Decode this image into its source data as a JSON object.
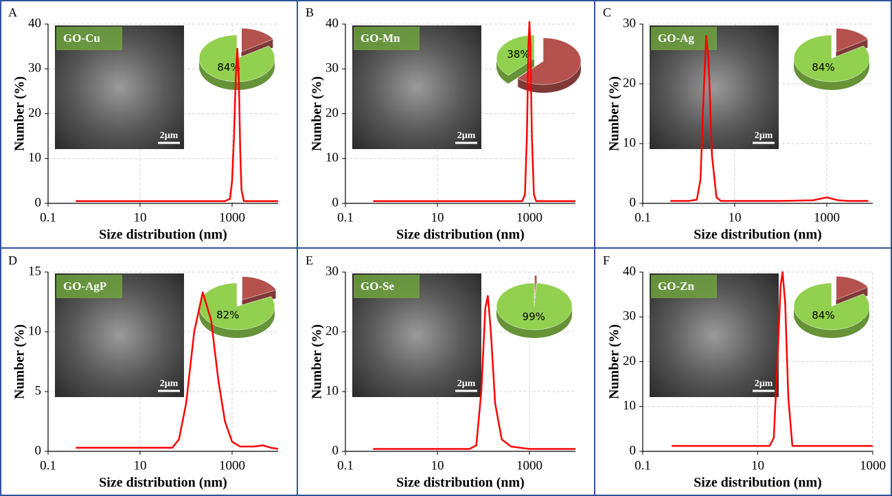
{
  "chart_data": [
    {
      "type": "line",
      "panel": "A",
      "inset_label": "GO-Cu",
      "scale_bar": "2μm",
      "xlabel": "Size distribution (nm)",
      "ylabel": "Number (%)",
      "xscale": "log",
      "grid": true,
      "color": "#ff0000",
      "xlim": [
        0.1,
        10000
      ],
      "xticks": [
        0.1,
        10,
        1000
      ],
      "ylim": [
        0,
        40
      ],
      "yticks": [
        0,
        10,
        20,
        30,
        40
      ],
      "x": [
        0.4,
        100,
        700,
        900,
        1000,
        1100,
        1200,
        1300,
        1400,
        1500,
        1600,
        1800,
        10000
      ],
      "values": [
        0.5,
        0.5,
        0.5,
        1,
        5,
        15,
        28,
        34.5,
        28,
        12,
        3,
        0.5,
        0.5
      ],
      "pie": {
        "values": [
          84,
          16
        ],
        "value_labels": [
          "84%",
          null
        ],
        "colors": [
          "#92d050",
          "#b5524e"
        ]
      }
    },
    {
      "type": "line",
      "panel": "B",
      "inset_label": "GO-Mn",
      "scale_bar": "2μm",
      "xlabel": "Size distribution (nm)",
      "ylabel": "Number (%)",
      "xscale": "log",
      "grid": true,
      "color": "#ff0000",
      "xlim": [
        0.1,
        10000
      ],
      "xticks": [
        0.1,
        10,
        1000
      ],
      "ylim": [
        0,
        40
      ],
      "yticks": [
        0,
        10,
        20,
        30,
        40
      ],
      "x": [
        0.4,
        100,
        700,
        800,
        880,
        950,
        1000,
        1050,
        1130,
        1250,
        1400,
        10000
      ],
      "values": [
        0.5,
        0.5,
        0.5,
        2,
        15,
        35,
        40.5,
        35,
        15,
        2,
        0.5,
        0.5
      ],
      "pie": {
        "values": [
          38,
          62
        ],
        "value_labels": [
          "38%",
          null
        ],
        "colors": [
          "#92d050",
          "#b5524e"
        ]
      }
    },
    {
      "type": "line",
      "panel": "C",
      "inset_label": "GO-Ag",
      "scale_bar": "2μm",
      "xlabel": "Size distribution (nm)",
      "ylabel": "Number (%)",
      "xscale": "log",
      "grid": true,
      "color": "#ff0000",
      "xlim": [
        0.1,
        10000
      ],
      "xticks": [
        0.1,
        10,
        1000
      ],
      "ylim": [
        0,
        30
      ],
      "yticks": [
        0,
        10,
        20,
        30
      ],
      "x": [
        0.4,
        1,
        1.5,
        1.8,
        2.1,
        2.4,
        2.7,
        3.2,
        4,
        5,
        100,
        500,
        1000,
        1800,
        3000,
        8000
      ],
      "values": [
        0.4,
        0.4,
        0.6,
        4,
        18,
        28,
        24,
        8,
        1,
        0.4,
        0.4,
        0.5,
        1,
        0.5,
        0.4,
        0.4
      ],
      "pie": {
        "values": [
          84,
          16
        ],
        "value_labels": [
          "84%",
          null
        ],
        "colors": [
          "#92d050",
          "#b5524e"
        ]
      }
    },
    {
      "type": "line",
      "panel": "D",
      "inset_label": "GO-AgP",
      "scale_bar": "2μm",
      "xlabel": "Size distribution (nm)",
      "ylabel": "Number (%)",
      "xscale": "log",
      "grid": true,
      "color": "#ff0000",
      "xlim": [
        0.1,
        10000
      ],
      "xticks": [
        0.1,
        10,
        1000
      ],
      "ylim": [
        0,
        15
      ],
      "yticks": [
        0,
        5,
        10,
        15
      ],
      "x": [
        0.4,
        50,
        70,
        100,
        150,
        230,
        350,
        500,
        700,
        1000,
        1500,
        3000,
        4700,
        7000,
        10000
      ],
      "values": [
        0.3,
        0.3,
        1,
        4,
        10,
        13.3,
        11,
        6,
        2.5,
        0.8,
        0.4,
        0.4,
        0.5,
        0.3,
        0.2
      ],
      "pie": {
        "values": [
          82,
          18
        ],
        "value_labels": [
          "82%",
          null
        ],
        "colors": [
          "#92d050",
          "#b5524e"
        ]
      }
    },
    {
      "type": "line",
      "panel": "E",
      "inset_label": "GO-Se",
      "scale_bar": "2μm",
      "xlabel": "Size distribution (nm)",
      "ylabel": "Number (%)",
      "xscale": "log",
      "grid": true,
      "color": "#ff0000",
      "xlim": [
        0.1,
        10000
      ],
      "xticks": [
        0.1,
        10,
        1000
      ],
      "ylim": [
        0,
        30
      ],
      "yticks": [
        0,
        10,
        20,
        30
      ],
      "x": [
        0.4,
        50,
        70,
        90,
        110,
        125,
        145,
        180,
        250,
        400,
        1000,
        10000
      ],
      "values": [
        0.4,
        0.4,
        1,
        10,
        24,
        26,
        20,
        8,
        2,
        0.8,
        0.4,
        0.4
      ],
      "pie": {
        "values": [
          99,
          1
        ],
        "value_labels": [
          "99%",
          null
        ],
        "colors": [
          "#92d050",
          "#b5524e"
        ]
      }
    },
    {
      "type": "line",
      "panel": "F",
      "inset_label": "GO-Zn",
      "scale_bar": "2μm",
      "xlabel": "Size distribution (nm)",
      "ylabel": "Number (%)",
      "xscale": "log",
      "grid": true,
      "color": "#ff0000",
      "xlim": [
        0.1,
        1000
      ],
      "xticks": [
        0.1,
        10,
        1000
      ],
      "ylim": [
        0,
        40
      ],
      "yticks": [
        0,
        10,
        20,
        30,
        40
      ],
      "x": [
        0.32,
        16,
        19,
        22,
        25,
        27,
        30,
        34,
        40,
        1000
      ],
      "values": [
        1.2,
        1.2,
        3,
        20,
        37,
        40,
        33,
        12,
        1.2,
        1.2
      ],
      "pie": {
        "values": [
          84,
          16
        ],
        "value_labels": [
          "84%",
          null
        ],
        "colors": [
          "#92d050",
          "#b5524e"
        ]
      }
    }
  ]
}
